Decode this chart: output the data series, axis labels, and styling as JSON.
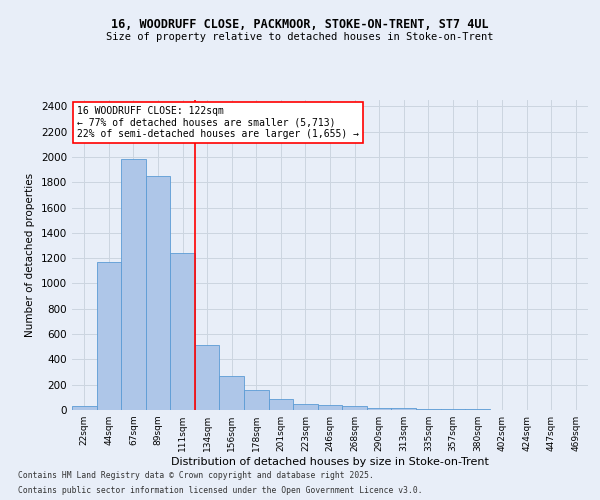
{
  "title_line1": "16, WOODRUFF CLOSE, PACKMOOR, STOKE-ON-TRENT, ST7 4UL",
  "title_line2": "Size of property relative to detached houses in Stoke-on-Trent",
  "xlabel": "Distribution of detached houses by size in Stoke-on-Trent",
  "ylabel": "Number of detached properties",
  "categories": [
    "22sqm",
    "44sqm",
    "67sqm",
    "89sqm",
    "111sqm",
    "134sqm",
    "156sqm",
    "178sqm",
    "201sqm",
    "223sqm",
    "246sqm",
    "268sqm",
    "290sqm",
    "313sqm",
    "335sqm",
    "357sqm",
    "380sqm",
    "402sqm",
    "424sqm",
    "447sqm",
    "469sqm"
  ],
  "values": [
    30,
    1170,
    1980,
    1850,
    1240,
    515,
    270,
    155,
    90,
    50,
    42,
    30,
    18,
    14,
    10,
    6,
    4,
    3,
    2,
    2,
    2
  ],
  "bar_color": "#aec6e8",
  "bar_edge_color": "#5b9bd5",
  "vline_x_index": 4.5,
  "vline_color": "red",
  "annotation_text": "16 WOODRUFF CLOSE: 122sqm\n← 77% of detached houses are smaller (5,713)\n22% of semi-detached houses are larger (1,655) →",
  "annotation_box_color": "white",
  "annotation_box_edge_color": "red",
  "ylim": [
    0,
    2450
  ],
  "yticks": [
    0,
    200,
    400,
    600,
    800,
    1000,
    1200,
    1400,
    1600,
    1800,
    2000,
    2200,
    2400
  ],
  "grid_color": "#ccd5e0",
  "background_color": "#e8eef8",
  "footer_line1": "Contains HM Land Registry data © Crown copyright and database right 2025.",
  "footer_line2": "Contains public sector information licensed under the Open Government Licence v3.0."
}
